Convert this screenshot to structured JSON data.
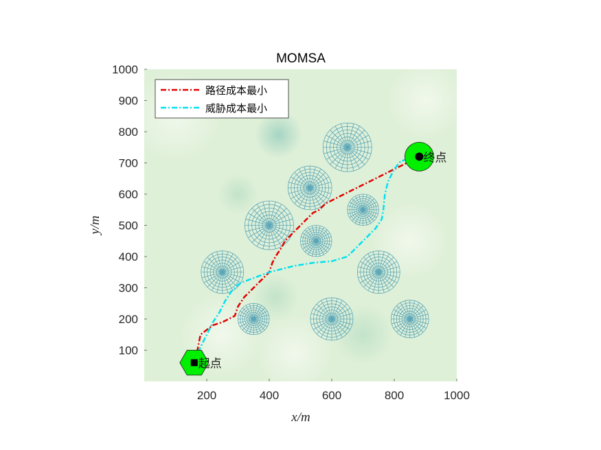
{
  "chart_data": {
    "type": "line",
    "title": "MOMSA",
    "xlabel": "x/m",
    "ylabel": "y/m",
    "xlim": [
      0,
      1000
    ],
    "ylim": [
      0,
      1000
    ],
    "xticks": [
      200,
      400,
      600,
      800,
      1000
    ],
    "yticks": [
      100,
      200,
      300,
      400,
      500,
      600,
      700,
      800,
      900,
      1000
    ],
    "legend_position": "top-left",
    "background_colors": {
      "plot": "#dff0d8",
      "dark_blob": "#a3d3c3",
      "light_blob": "#f1f8ec"
    },
    "series": [
      {
        "name": "路径成本最小",
        "color": "#e00000",
        "style": "dash-dot",
        "points": [
          [
            160,
            60
          ],
          [
            170,
            100
          ],
          [
            180,
            150
          ],
          [
            200,
            165
          ],
          [
            220,
            180
          ],
          [
            250,
            190
          ],
          [
            270,
            200
          ],
          [
            290,
            210
          ],
          [
            300,
            240
          ],
          [
            320,
            270
          ],
          [
            340,
            290
          ],
          [
            360,
            310
          ],
          [
            380,
            330
          ],
          [
            400,
            350
          ],
          [
            410,
            380
          ],
          [
            420,
            400
          ],
          [
            440,
            430
          ],
          [
            450,
            450
          ],
          [
            480,
            480
          ],
          [
            500,
            500
          ],
          [
            520,
            520
          ],
          [
            540,
            540
          ],
          [
            560,
            550
          ],
          [
            580,
            570
          ],
          [
            620,
            590
          ],
          [
            660,
            610
          ],
          [
            700,
            630
          ],
          [
            740,
            650
          ],
          [
            780,
            670
          ],
          [
            820,
            690
          ],
          [
            850,
            705
          ],
          [
            880,
            720
          ]
        ]
      },
      {
        "name": "威胁成本最小",
        "color": "#00e0f0",
        "style": "dash-dot",
        "points": [
          [
            160,
            60
          ],
          [
            170,
            90
          ],
          [
            185,
            120
          ],
          [
            200,
            150
          ],
          [
            220,
            190
          ],
          [
            240,
            220
          ],
          [
            260,
            260
          ],
          [
            280,
            290
          ],
          [
            300,
            310
          ],
          [
            320,
            320
          ],
          [
            360,
            335
          ],
          [
            400,
            350
          ],
          [
            440,
            360
          ],
          [
            480,
            370
          ],
          [
            540,
            380
          ],
          [
            600,
            385
          ],
          [
            650,
            400
          ],
          [
            670,
            420
          ],
          [
            700,
            450
          ],
          [
            740,
            490
          ],
          [
            760,
            520
          ],
          [
            765,
            550
          ],
          [
            770,
            600
          ],
          [
            780,
            640
          ],
          [
            800,
            680
          ],
          [
            820,
            705
          ],
          [
            850,
            715
          ],
          [
            880,
            720
          ]
        ]
      }
    ],
    "threats": [
      {
        "x": 650,
        "y": 750,
        "r": 78
      },
      {
        "x": 530,
        "y": 620,
        "r": 70
      },
      {
        "x": 400,
        "y": 500,
        "r": 78
      },
      {
        "x": 700,
        "y": 550,
        "r": 50
      },
      {
        "x": 550,
        "y": 450,
        "r": 50
      },
      {
        "x": 250,
        "y": 350,
        "r": 68
      },
      {
        "x": 750,
        "y": 350,
        "r": 68
      },
      {
        "x": 350,
        "y": 200,
        "r": 50
      },
      {
        "x": 600,
        "y": 200,
        "r": 68
      },
      {
        "x": 850,
        "y": 200,
        "r": 60
      }
    ],
    "start": {
      "x": 160,
      "y": 60,
      "label": "起点"
    },
    "end": {
      "x": 880,
      "y": 720,
      "label": "终点"
    }
  }
}
